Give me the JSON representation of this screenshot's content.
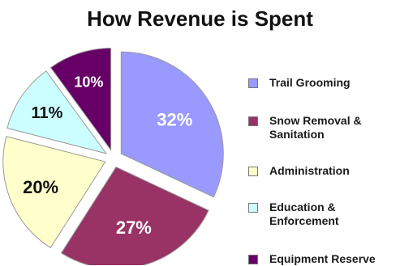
{
  "chart_data": {
    "type": "pie",
    "title": "How Revenue is Spent",
    "categories": [
      "Trail Grooming",
      "Snow Removal &\nSanitation",
      "Administration",
      "Education &\nEnforcement",
      "Equipment Reserve"
    ],
    "values": [
      32,
      27,
      20,
      11,
      10
    ],
    "labels": [
      "32%",
      "27%",
      "20%",
      "11%",
      "10%"
    ],
    "colors": [
      "#9999ff",
      "#993366",
      "#ffffcc",
      "#ccffff",
      "#660066"
    ],
    "label_colors": [
      "#ffffff",
      "#ffffff",
      "#111111",
      "#111111",
      "#ffffff"
    ],
    "legend_position": "right",
    "exploded": true
  }
}
